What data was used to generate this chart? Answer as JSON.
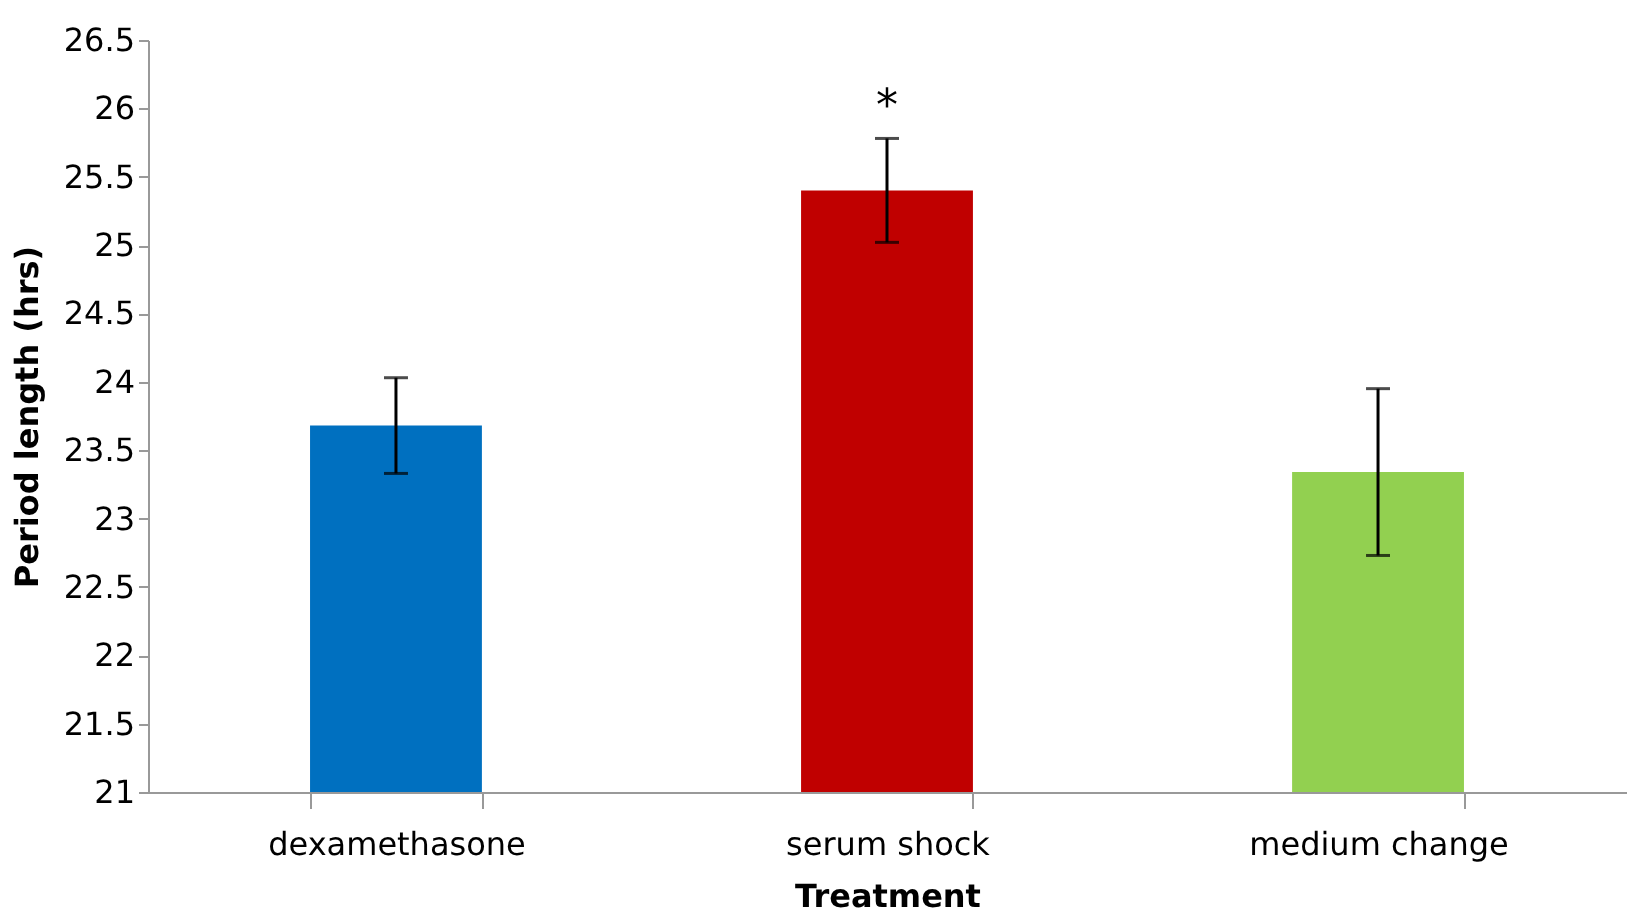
{
  "chart_data": {
    "type": "bar",
    "xlabel": "Treatment",
    "ylabel": "Period length (hrs)",
    "categories": [
      "dexamethasone",
      "serum shock",
      "medium change"
    ],
    "values": [
      23.68,
      25.4,
      23.34
    ],
    "colors": [
      "#0070c0",
      "#c00000",
      "#92d050"
    ],
    "errors": [
      0.35,
      0.38,
      0.61
    ],
    "ylim": [
      21,
      26.5
    ],
    "yticks": [
      21,
      21.5,
      22,
      22.5,
      23,
      23.5,
      24,
      24.5,
      25,
      25.5,
      26,
      26.5
    ],
    "grid": false,
    "annotations": [
      "*"
    ]
  }
}
